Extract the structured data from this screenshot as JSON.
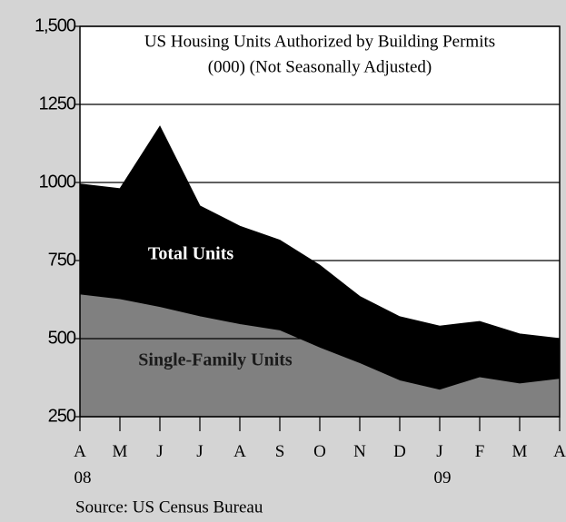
{
  "chart_data": {
    "type": "area",
    "title": "US Housing Units Authorized by Building Permits",
    "subtitle": "(000) (Not Seasonally Adjusted)",
    "source": "Source: US Census Bureau",
    "categories": [
      "A 08",
      "M",
      "J",
      "J",
      "A",
      "S",
      "O",
      "N",
      "D",
      "J 09",
      "F",
      "M",
      "A"
    ],
    "series": [
      {
        "name": "Total Units",
        "color": "#000000",
        "values": [
          995,
          980,
          1180,
          925,
          860,
          815,
          735,
          635,
          570,
          540,
          555,
          515,
          500
        ]
      },
      {
        "name": "Single-Family Units",
        "color": "#808080",
        "values": [
          640,
          625,
          600,
          570,
          545,
          525,
          470,
          420,
          365,
          335,
          375,
          355,
          370
        ]
      }
    ],
    "ylim": [
      250,
      1500
    ],
    "yticks": [
      250,
      500,
      750,
      1000,
      1250,
      {
        "value": 1500,
        "label": "1,500"
      }
    ],
    "grid": true
  }
}
